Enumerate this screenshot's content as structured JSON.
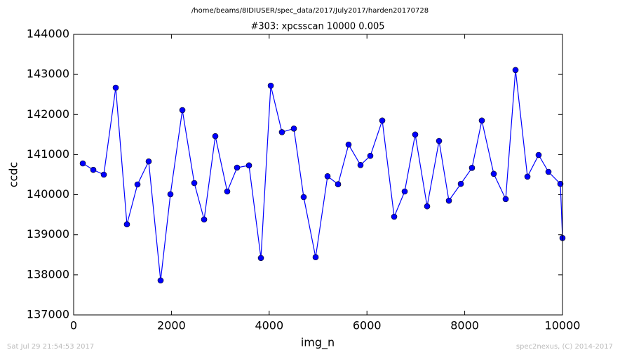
{
  "chart_data": {
    "type": "line",
    "suptitle": "/home/beams/8IDIUSER/spec_data/2017/July2017/harden20170728",
    "title": "#303: xpcsscan 10000 0.005",
    "xlabel": "img_n",
    "ylabel": "ccdc",
    "footer_left": "Sat Jul 29 21:54:53 2017",
    "footer_right": "spec2nexus, (C) 2014-2017",
    "x": [
      187,
      402,
      617,
      861,
      1090,
      1306,
      1535,
      1779,
      1980,
      2224,
      2468,
      2669,
      2898,
      3142,
      3343,
      3587,
      3831,
      4032,
      4261,
      4505,
      4706,
      4950,
      5194,
      5409,
      5624,
      5868,
      6069,
      6313,
      6557,
      6772,
      6987,
      7231,
      7475,
      7676,
      7920,
      8149,
      8350,
      8594,
      8838,
      9039,
      9283,
      9512,
      9713,
      9957,
      10000
    ],
    "series": [
      {
        "color": "#0000ff",
        "values": [
          140780,
          140620,
          140500,
          142670,
          139260,
          140255,
          140830,
          137860,
          140010,
          142110,
          140290,
          139380,
          141460,
          140080,
          140675,
          140730,
          138420,
          142720,
          141560,
          141650,
          139940,
          138440,
          140460,
          140260,
          141250,
          140740,
          140970,
          141850,
          139450,
          140080,
          141500,
          139710,
          141340,
          139850,
          140270,
          140670,
          141850,
          140520,
          139890,
          143110,
          140450,
          140990,
          140570,
          140270,
          138920
        ]
      }
    ],
    "xlim": [
      0,
      10000
    ],
    "xticks": [
      0,
      2000,
      4000,
      6000,
      8000,
      10000
    ],
    "ylim": [
      137000,
      144000
    ],
    "yticks": [
      137000,
      138000,
      139000,
      140000,
      141000,
      142000,
      143000,
      144000
    ],
    "grid": false
  }
}
